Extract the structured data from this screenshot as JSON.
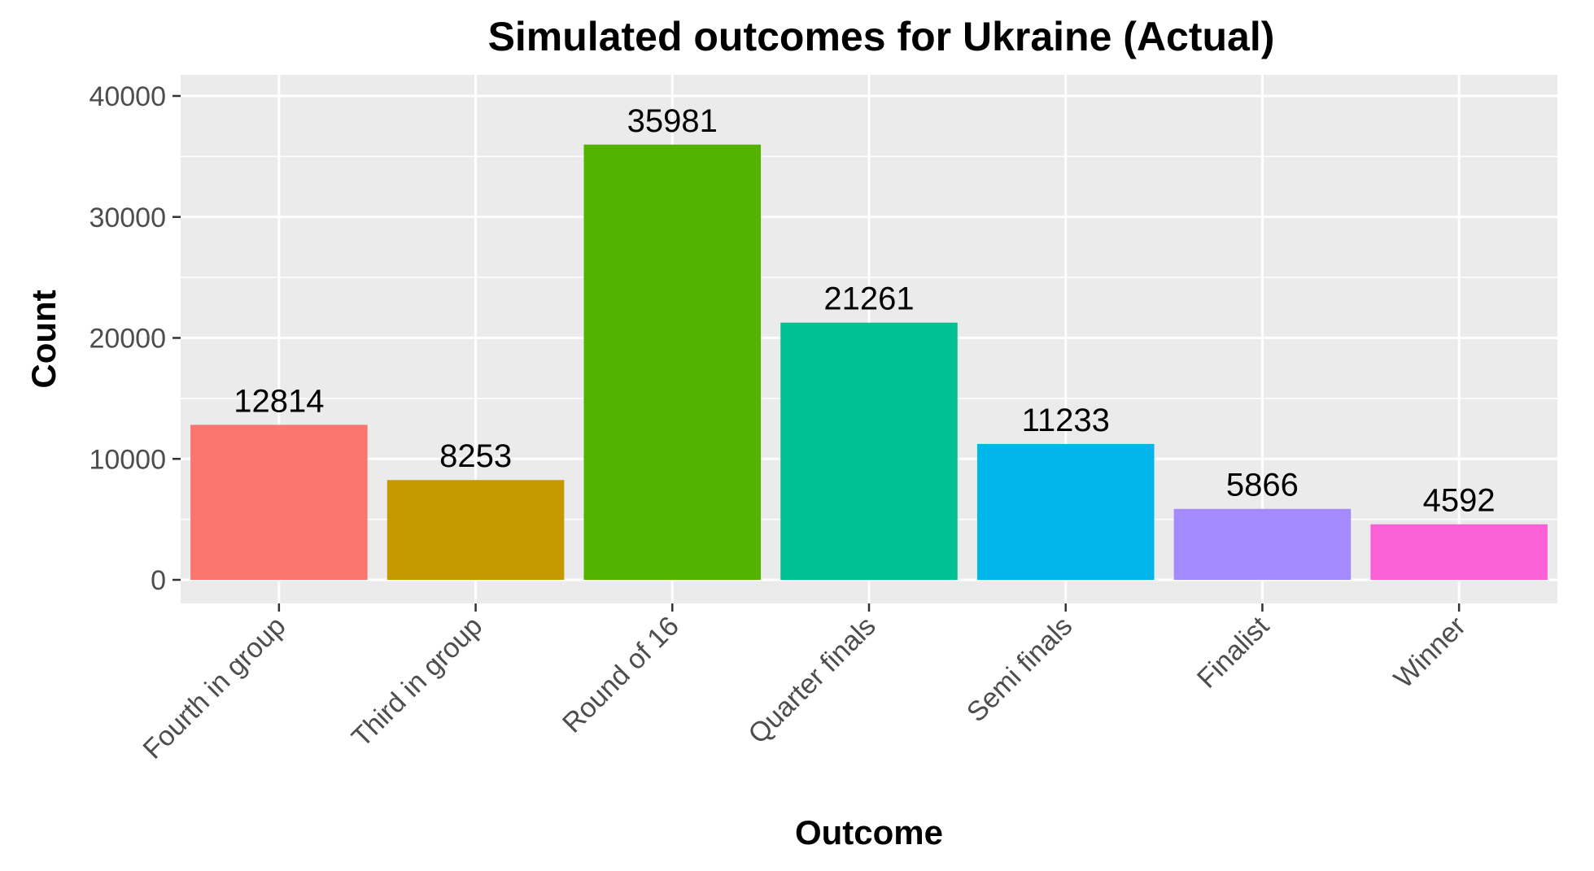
{
  "chart_data": {
    "type": "bar",
    "title": "Simulated outcomes for Ukraine (Actual)",
    "xlabel": "Outcome",
    "ylabel": "Count",
    "categories": [
      "Fourth in group",
      "Third in group",
      "Round of 16",
      "Quarter finals",
      "Semi finals",
      "Finalist",
      "Winner"
    ],
    "values": [
      12814,
      8253,
      35981,
      21261,
      11233,
      5866,
      4592
    ],
    "colors": [
      "#F8766D",
      "#C49A00",
      "#53B400",
      "#00C094",
      "#00B6EB",
      "#A58AFF",
      "#FB61D7"
    ],
    "ylim": [
      0,
      40000
    ],
    "yticks": [
      0,
      10000,
      20000,
      30000,
      40000
    ],
    "ytick_labels": [
      "0",
      "10000",
      "20000",
      "30000",
      "40000"
    ],
    "grid": true,
    "legend": "none",
    "panel_background": "#EBEBEB"
  }
}
